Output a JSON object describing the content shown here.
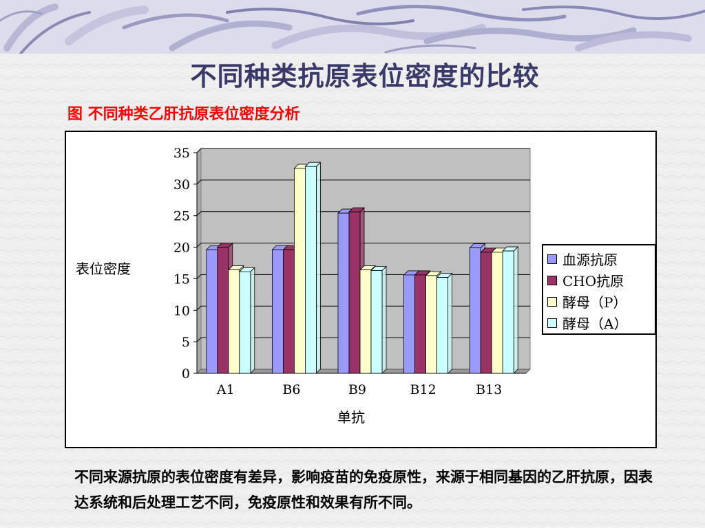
{
  "slide": {
    "title": "不同种类抗原表位密度的比较",
    "caption": "图 不同种类乙肝抗原表位密度分析",
    "body_text": "不同来源抗原的表位密度有差异，影响疫苗的免疫原性，来源于相同基因的乙肝抗原，因表达系统和后处理工艺不同，免疫原性和效果有所不同。"
  },
  "colors": {
    "title": "#3a3a6a",
    "caption": "#ff0000",
    "plot_bg": "#c0c0c0",
    "series": [
      "#9999ff",
      "#993366",
      "#ffffcc",
      "#ccffff"
    ]
  },
  "chart_data": {
    "type": "bar",
    "title": "",
    "xlabel": "单抗",
    "ylabel": "表位密度",
    "ylim": [
      0,
      35
    ],
    "yticks": [
      0,
      5,
      10,
      15,
      20,
      25,
      30,
      35
    ],
    "categories": [
      "A1",
      "B6",
      "B9",
      "B12",
      "B13"
    ],
    "series": [
      {
        "name": "血源抗原",
        "values": [
          19.6,
          19.6,
          25.4,
          15.6,
          19.9
        ]
      },
      {
        "name": "CHO抗原",
        "values": [
          20.0,
          19.6,
          25.6,
          15.6,
          19.2
        ]
      },
      {
        "name": "酵母（P）",
        "values": [
          16.4,
          32.5,
          16.4,
          15.5,
          19.2
        ]
      },
      {
        "name": "酵母（A）",
        "values": [
          16.1,
          32.8,
          16.3,
          15.2,
          19.4
        ]
      }
    ],
    "grid": true,
    "legend_position": "right",
    "style": "3d-clustered-column"
  }
}
